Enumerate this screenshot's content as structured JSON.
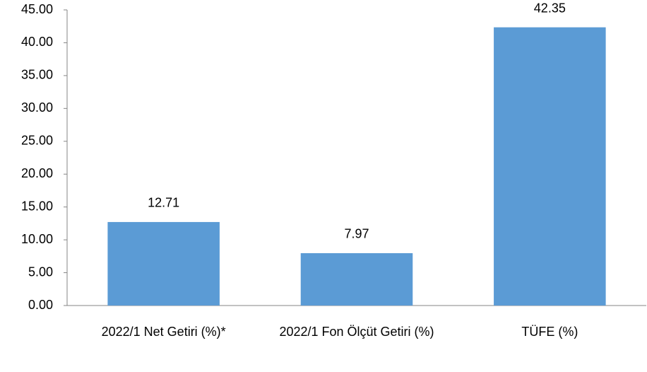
{
  "chart_data": {
    "type": "bar",
    "categories": [
      "2022/1 Net Getiri (%)*",
      "2022/1 Fon Ölçüt Getiri (%)",
      "TÜFE (%)"
    ],
    "values": [
      12.71,
      7.97,
      42.35
    ],
    "color": "#5b9bd5",
    "ylim": [
      0,
      45
    ],
    "yticks": [
      {
        "value": 0,
        "label": "0.00"
      },
      {
        "value": 5,
        "label": "5.00"
      },
      {
        "value": 10,
        "label": "10.00"
      },
      {
        "value": 15,
        "label": "15.00"
      },
      {
        "value": 20,
        "label": "20.00"
      },
      {
        "value": 25,
        "label": "25.00"
      },
      {
        "value": 30,
        "label": "30.00"
      },
      {
        "value": 35,
        "label": "35.00"
      },
      {
        "value": 40,
        "label": "40.00"
      },
      {
        "value": 45,
        "label": "45.00"
      }
    ],
    "grid": false
  }
}
